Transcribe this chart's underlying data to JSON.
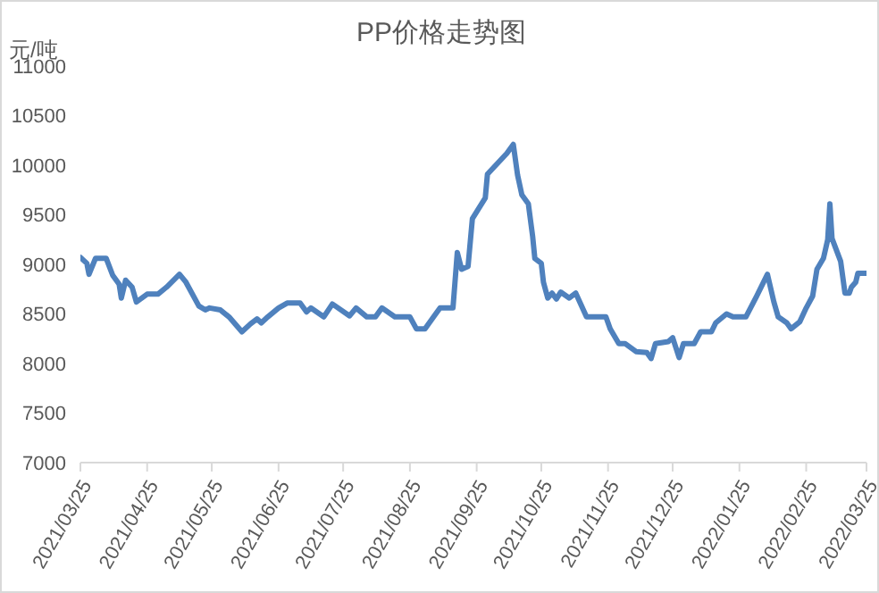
{
  "chart_data": {
    "type": "line",
    "title": "PP价格走势图",
    "ylabel": "元/吨",
    "x": [
      "2021-03-25",
      "2021-03-28",
      "2021-03-29",
      "2021-04-01",
      "2021-04-06",
      "2021-04-09",
      "2021-04-12",
      "2021-04-13",
      "2021-04-15",
      "2021-04-18",
      "2021-04-20",
      "2021-04-25",
      "2021-04-30",
      "2021-05-04",
      "2021-05-10",
      "2021-05-13",
      "2021-05-19",
      "2021-05-22",
      "2021-05-24",
      "2021-05-29",
      "2021-06-02",
      "2021-06-08",
      "2021-06-12",
      "2021-06-15",
      "2021-06-17",
      "2021-06-20",
      "2021-06-25",
      "2021-06-29",
      "2021-07-05",
      "2021-07-08",
      "2021-07-10",
      "2021-07-16",
      "2021-07-20",
      "2021-07-28",
      "2021-07-31",
      "2021-08-05",
      "2021-08-09",
      "2021-08-12",
      "2021-08-18",
      "2021-08-25",
      "2021-08-28",
      "2021-09-01",
      "2021-09-05",
      "2021-09-08",
      "2021-09-14",
      "2021-09-16",
      "2021-09-18",
      "2021-09-21",
      "2021-09-23",
      "2021-09-29",
      "2021-09-30",
      "2021-10-03",
      "2021-10-09",
      "2021-10-12",
      "2021-10-14",
      "2021-10-16",
      "2021-10-19",
      "2021-10-21",
      "2021-10-22",
      "2021-10-25",
      "2021-10-26",
      "2021-10-28",
      "2021-10-30",
      "2021-11-01",
      "2021-11-03",
      "2021-11-07",
      "2021-11-10",
      "2021-11-15",
      "2021-11-24",
      "2021-11-26",
      "2021-11-30",
      "2021-12-03",
      "2021-12-08",
      "2021-12-13",
      "2021-12-15",
      "2021-12-17",
      "2021-12-23",
      "2021-12-25",
      "2021-12-28",
      "2021-12-30",
      "2022-01-04",
      "2022-01-07",
      "2022-01-12",
      "2022-01-14",
      "2022-01-19",
      "2022-01-22",
      "2022-01-28",
      "2022-02-02",
      "2022-02-07",
      "2022-02-10",
      "2022-02-12",
      "2022-02-16",
      "2022-02-18",
      "2022-02-22",
      "2022-02-25",
      "2022-02-28",
      "2022-03-02",
      "2022-03-05",
      "2022-03-07",
      "2022-03-08",
      "2022-03-09",
      "2022-03-13",
      "2022-03-15",
      "2022-03-17",
      "2022-03-18",
      "2022-03-20",
      "2022-03-21",
      "2022-03-25"
    ],
    "series": [
      {
        "color": "#4f81bd",
        "values": [
          9070,
          9010,
          8900,
          9060,
          9060,
          8890,
          8800,
          8660,
          8840,
          8770,
          8620,
          8700,
          8700,
          8770,
          8900,
          8820,
          8580,
          8540,
          8560,
          8540,
          8470,
          8320,
          8400,
          8450,
          8410,
          8470,
          8560,
          8610,
          8610,
          8520,
          8560,
          8470,
          8600,
          8480,
          8560,
          8470,
          8470,
          8560,
          8470,
          8470,
          8350,
          8350,
          8470,
          8560,
          8560,
          9120,
          8950,
          8980,
          9460,
          9670,
          9910,
          9980,
          10120,
          10210,
          9900,
          9700,
          9610,
          9280,
          9060,
          9010,
          8820,
          8660,
          8710,
          8650,
          8720,
          8660,
          8710,
          8470,
          8470,
          8350,
          8200,
          8200,
          8120,
          8110,
          8050,
          8200,
          8220,
          8260,
          8060,
          8200,
          8200,
          8320,
          8320,
          8410,
          8500,
          8470,
          8470,
          8680,
          8900,
          8620,
          8470,
          8410,
          8350,
          8420,
          8560,
          8680,
          8950,
          9060,
          9250,
          9610,
          9260,
          9030,
          8710,
          8710,
          8770,
          8820,
          8910,
          8910
        ]
      }
    ],
    "xlim": [
      "2021-03-25",
      "2022-03-25"
    ],
    "xticks": [
      {
        "value": "2021-03-25",
        "label": "2021/03/25"
      },
      {
        "value": "2021-04-25",
        "label": "2021/04/25"
      },
      {
        "value": "2021-05-25",
        "label": "2021/05/25"
      },
      {
        "value": "2021-06-25",
        "label": "2021/06/25"
      },
      {
        "value": "2021-07-25",
        "label": "2021/07/25"
      },
      {
        "value": "2021-08-25",
        "label": "2021/08/25"
      },
      {
        "value": "2021-09-25",
        "label": "2021/09/25"
      },
      {
        "value": "2021-10-25",
        "label": "2021/10/25"
      },
      {
        "value": "2021-11-25",
        "label": "2021/11/25"
      },
      {
        "value": "2021-12-25",
        "label": "2021/12/25"
      },
      {
        "value": "2022-01-25",
        "label": "2022/01/25"
      },
      {
        "value": "2022-02-25",
        "label": "2022/02/25"
      },
      {
        "value": "2022-03-25",
        "label": "2022/03/25"
      }
    ],
    "ylim": [
      7000,
      11000
    ],
    "yticks": [
      7000,
      7500,
      8000,
      8500,
      9000,
      9500,
      10000,
      10500,
      11000
    ]
  }
}
